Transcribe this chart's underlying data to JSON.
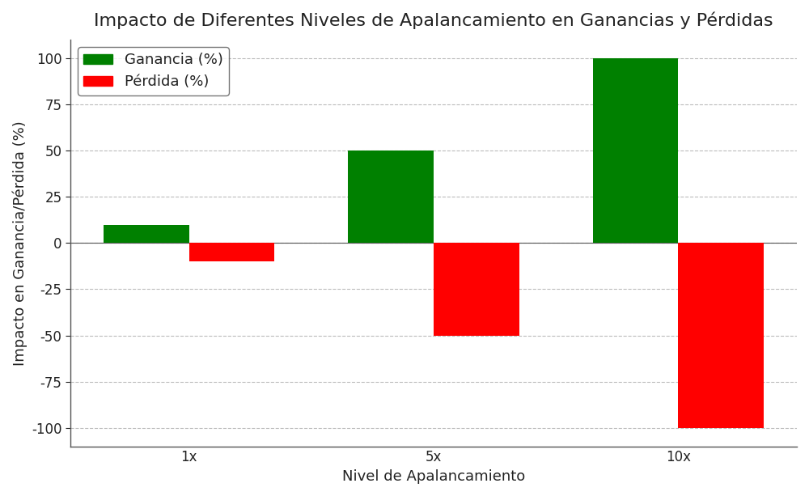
{
  "title": "Impacto de Diferentes Niveles de Apalancamiento en Ganancias y Pérdidas",
  "xlabel": "Nivel de Apalancamiento",
  "ylabel": "Impacto en Ganancia/Pérdida (%)",
  "categories": [
    "1x",
    "5x",
    "10x"
  ],
  "ganancia_values": [
    10,
    50,
    100
  ],
  "perdida_values": [
    -10,
    -50,
    -100
  ],
  "ganancia_color": "#008000",
  "perdida_color": "#ff0000",
  "background_color": "#ffffff",
  "plot_bg_color": "#ffffff",
  "text_color": "#222222",
  "grid_color": "#aaaaaa",
  "spine_color": "#555555",
  "ylim": [
    -110,
    110
  ],
  "yticks": [
    -100,
    -75,
    -50,
    -25,
    0,
    25,
    50,
    75,
    100
  ],
  "bar_width": 0.35,
  "title_fontsize": 16,
  "label_fontsize": 13,
  "tick_fontsize": 12,
  "legend_ganancia": "Ganancia (%)",
  "legend_perdida": "Pérdida (%)"
}
